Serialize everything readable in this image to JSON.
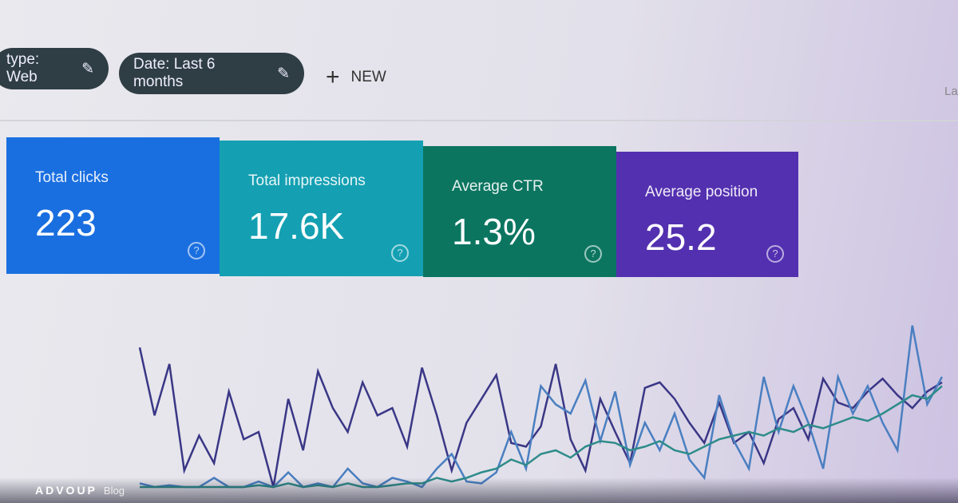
{
  "filters": [
    {
      "label": "type: Web"
    },
    {
      "label": "Date: Last 6 months"
    }
  ],
  "new_button": "NEW",
  "corner_text": "La",
  "cards": [
    {
      "label": "Total clicks",
      "value": "223",
      "color": "#1a6fe0"
    },
    {
      "label": "Total impressions",
      "value": "17.6K",
      "color": "#14a0b2"
    },
    {
      "label": "Average CTR",
      "value": "1.3%",
      "color": "#0b7560"
    },
    {
      "label": "Average position",
      "value": "25.2",
      "color": "#5330b0"
    }
  ],
  "chart": {
    "type": "line",
    "ylim": [
      0,
      100
    ],
    "series": [
      {
        "color": "#3a3786",
        "values": [
          76,
          39,
          67,
          9,
          28,
          13,
          52,
          26,
          30,
          0,
          48,
          20,
          63,
          43,
          30,
          57,
          39,
          43,
          22,
          65,
          39,
          9,
          35,
          48,
          61,
          24,
          22,
          33,
          67,
          26,
          9,
          48,
          30,
          13,
          54,
          57,
          48,
          35,
          24,
          46,
          24,
          30,
          13,
          37,
          43,
          26,
          59,
          46,
          43,
          52,
          59,
          50,
          43,
          52,
          57
        ]
      },
      {
        "color": "#4a7fc1",
        "values": [
          2,
          0,
          1,
          0,
          0,
          5,
          0,
          0,
          3,
          0,
          8,
          0,
          2,
          0,
          10,
          2,
          0,
          5,
          3,
          0,
          10,
          18,
          3,
          2,
          8,
          30,
          10,
          55,
          45,
          40,
          58,
          25,
          52,
          12,
          35,
          20,
          40,
          15,
          5,
          50,
          25,
          10,
          60,
          30,
          55,
          35,
          10,
          60,
          40,
          55,
          35,
          20,
          88,
          45,
          60
        ]
      },
      {
        "color": "#2e8c8a",
        "values": [
          0,
          0,
          0,
          0,
          0,
          0,
          0,
          0,
          1,
          0,
          2,
          0,
          1,
          0,
          2,
          0,
          0,
          1,
          2,
          2,
          5,
          3,
          5,
          8,
          10,
          15,
          12,
          18,
          20,
          16,
          22,
          25,
          24,
          20,
          22,
          25,
          20,
          18,
          22,
          26,
          28,
          30,
          28,
          32,
          30,
          34,
          32,
          35,
          38,
          36,
          40,
          45,
          50,
          48,
          55
        ]
      }
    ]
  },
  "footer": {
    "brand": "ADVOUP",
    "section": "Blog"
  }
}
